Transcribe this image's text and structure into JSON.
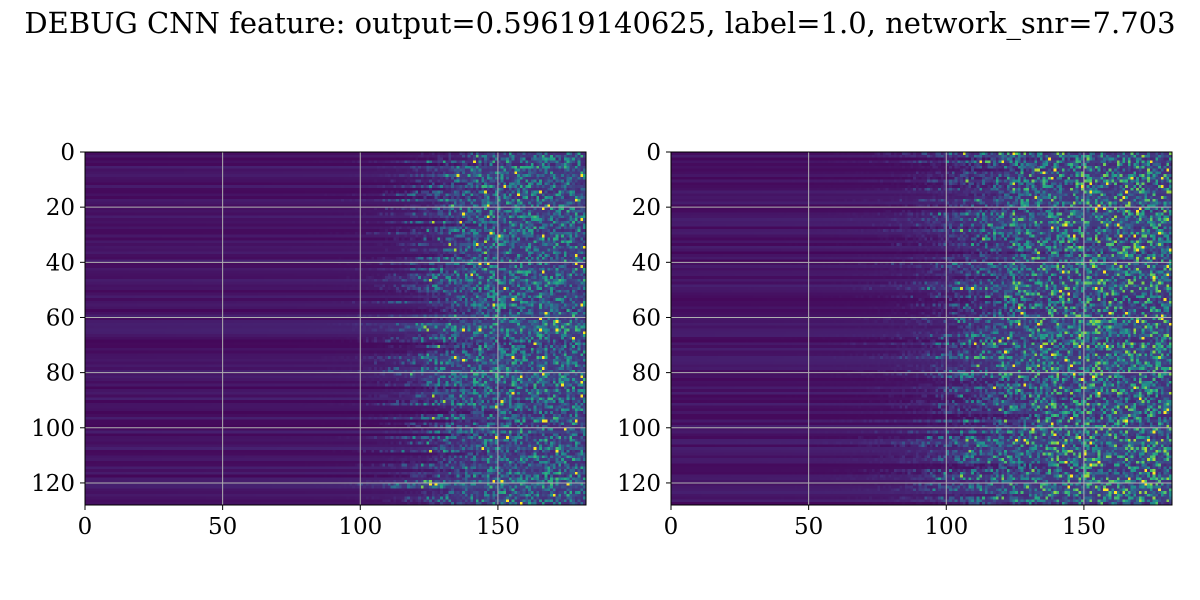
{
  "title": "DEBUG CNN feature: output=0.59619140625, label=1.0, network_snr=7.703",
  "chart_data": [
    {
      "type": "heatmap",
      "colormap": "viridis",
      "rows": 128,
      "cols": 182,
      "xlim": [
        0,
        182
      ],
      "ylim": [
        128,
        0
      ],
      "x_ticks": [
        0,
        50,
        100,
        150
      ],
      "x_tick_labels": [
        "0",
        "50",
        "100",
        "150"
      ],
      "y_ticks": [
        0,
        20,
        40,
        60,
        80,
        100,
        120
      ],
      "y_tick_labels": [
        "0",
        "20",
        "40",
        "60",
        "80",
        "100",
        "120"
      ],
      "grid": true,
      "pattern": {
        "onset_col": 125,
        "rise_width": 22,
        "noise": 0.55,
        "seed": 7
      }
    },
    {
      "type": "heatmap",
      "colormap": "viridis",
      "rows": 128,
      "cols": 182,
      "xlim": [
        0,
        182
      ],
      "ylim": [
        128,
        0
      ],
      "x_ticks": [
        0,
        50,
        100,
        150
      ],
      "x_tick_labels": [
        "0",
        "50",
        "100",
        "150"
      ],
      "y_ticks": [
        0,
        20,
        40,
        60,
        80,
        100,
        120
      ],
      "y_tick_labels": [
        "0",
        "20",
        "40",
        "60",
        "80",
        "100",
        "120"
      ],
      "grid": true,
      "pattern": {
        "onset_col": 110,
        "rise_width": 35,
        "noise": 0.75,
        "seed": 19
      }
    }
  ]
}
